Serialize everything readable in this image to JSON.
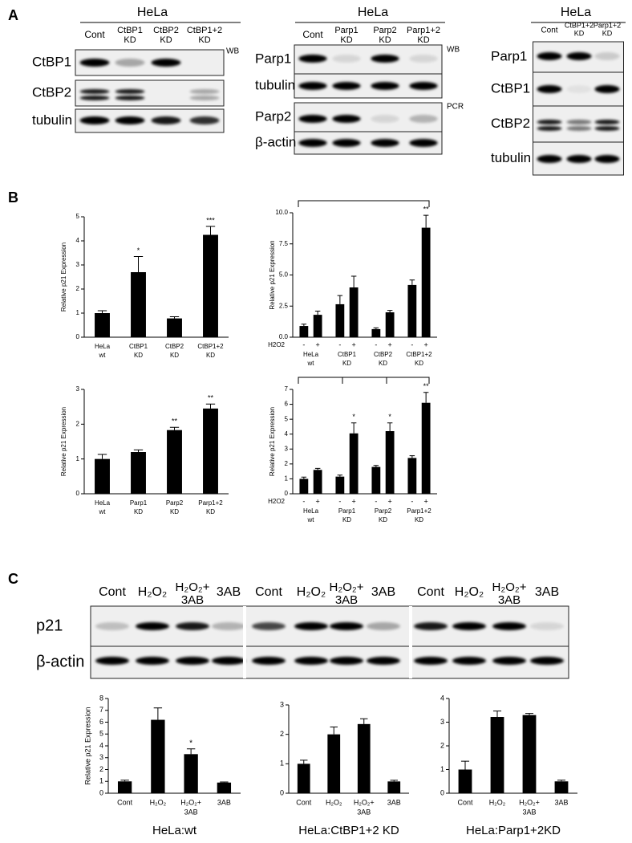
{
  "panel_labels": [
    "A",
    "B",
    "C"
  ],
  "blots": [
    {
      "title": "HeLa",
      "lanes": [
        [
          "Cont"
        ],
        [
          "CtBP1",
          "KD"
        ],
        [
          "CtBP2",
          "KD"
        ],
        [
          "CtBP1+2",
          "KD"
        ]
      ],
      "rows": [
        "CtBP1",
        "CtBP2",
        "tubulin"
      ],
      "tags": [
        "WB"
      ]
    },
    {
      "title": "HeLa",
      "lanes": [
        [
          "Cont"
        ],
        [
          "Parp1",
          "KD"
        ],
        [
          "Parp2",
          "KD"
        ],
        [
          "Parp1+2",
          "KD"
        ]
      ],
      "rows": [
        "Parp1",
        "tubulin",
        "Parp2",
        "β-actin"
      ],
      "tags": [
        "WB",
        "PCR"
      ]
    },
    {
      "title": "HeLa",
      "lanes": [
        [
          "Cont"
        ],
        [
          "CtBP1+2",
          "KD"
        ],
        [
          "Parp1+2",
          "KD"
        ]
      ],
      "rows": [
        "Parp1",
        "CtBP1",
        "CtBP2",
        "tubulin"
      ]
    },
    {
      "lanes": [
        [
          "Cont"
        ],
        [
          "H₂O₂"
        ],
        [
          "H₂O₂+",
          "3AB"
        ],
        [
          "3AB"
        ],
        [
          "Cont"
        ],
        [
          "H₂O₂"
        ],
        [
          "H₂O₂+",
          "3AB"
        ],
        [
          "3AB"
        ],
        [
          "Cont"
        ],
        [
          "H₂O₂"
        ],
        [
          "H₂O₂+",
          "3AB"
        ],
        [
          "3AB"
        ]
      ],
      "rows": [
        "p21",
        "β-actin"
      ]
    }
  ],
  "chart_data": [
    {
      "type": "bar",
      "ylabel": "Relative p21 Expression",
      "categories": [
        [
          "HeLa",
          "wt"
        ],
        [
          "CtBP1",
          "KD"
        ],
        [
          "CtBP2",
          "KD"
        ],
        [
          "CtBP1+2",
          "KD"
        ]
      ],
      "values": [
        1.0,
        2.7,
        0.78,
        4.25
      ],
      "errors": [
        0.1,
        0.65,
        0.07,
        0.35
      ],
      "significance": [
        null,
        "*",
        null,
        "***"
      ],
      "color": "#000000",
      "ylim": [
        0,
        5
      ],
      "yticks": [
        0,
        1,
        2,
        3,
        4,
        5
      ]
    },
    {
      "type": "bar",
      "ylabel": "Relative p21 Expression",
      "series_label": "H2O2",
      "categories": [
        [
          "HeLa",
          "wt"
        ],
        [
          "CtBP1",
          "KD"
        ],
        [
          "CtBP2",
          "KD"
        ],
        [
          "CtBP1+2",
          "KD"
        ]
      ],
      "series": [
        {
          "name": "-",
          "color": "#000000",
          "values": [
            0.9,
            2.65,
            0.65,
            4.2
          ],
          "errors": [
            0.15,
            0.7,
            0.1,
            0.4
          ]
        },
        {
          "name": "+",
          "color": "#000000",
          "values": [
            1.8,
            4.0,
            2.0,
            8.8
          ],
          "errors": [
            0.3,
            0.9,
            0.15,
            1.0
          ],
          "significance": [
            null,
            null,
            null,
            "**"
          ]
        }
      ],
      "ylim": [
        0,
        10
      ],
      "yticks": [
        {
          "value": 0,
          "label": "0.0"
        },
        2.5,
        {
          "value": 5,
          "label": "5.0"
        },
        7.5,
        {
          "value": 10,
          "label": "10.0"
        }
      ]
    },
    {
      "type": "bar",
      "ylabel": "Relative p21 Expression",
      "categories": [
        [
          "HeLa",
          "wt"
        ],
        [
          "Parp1",
          "KD"
        ],
        [
          "Parp2",
          "KD"
        ],
        [
          "Parp1+2",
          "KD"
        ]
      ],
      "values": [
        1.0,
        1.2,
        1.83,
        2.45
      ],
      "errors": [
        0.13,
        0.06,
        0.08,
        0.13
      ],
      "significance": [
        null,
        null,
        "**",
        "**"
      ],
      "color": "#000000",
      "ylim": [
        0,
        3
      ],
      "yticks": [
        0,
        1,
        2,
        3
      ]
    },
    {
      "type": "bar",
      "ylabel": "Relative p21 Expression",
      "series_label": "H2O2",
      "categories": [
        [
          "HeLa",
          "wt"
        ],
        [
          "Parp1",
          "KD"
        ],
        [
          "Parp2",
          "KD"
        ],
        [
          "Parp1+2",
          "KD"
        ]
      ],
      "series": [
        {
          "name": "-",
          "color": "#000000",
          "values": [
            1.0,
            1.15,
            1.8,
            2.4
          ],
          "errors": [
            0.12,
            0.1,
            0.1,
            0.15
          ]
        },
        {
          "name": "+",
          "color": "#000000",
          "values": [
            1.6,
            4.05,
            4.2,
            6.1
          ],
          "errors": [
            0.1,
            0.7,
            0.55,
            0.7
          ],
          "significance": [
            null,
            "*",
            "*",
            "**"
          ]
        }
      ],
      "ylim": [
        0,
        7
      ],
      "yticks": [
        0,
        1,
        2,
        3,
        4,
        5,
        6,
        7
      ]
    },
    {
      "type": "bar",
      "ylabel": "Relative p21 Expression",
      "xlabel": "HeLa:wt",
      "categories": [
        [
          "Cont"
        ],
        [
          "H₂O₂"
        ],
        [
          "H₂O₂+",
          "3AB"
        ],
        [
          "3AB"
        ]
      ],
      "values": [
        1.0,
        6.2,
        3.3,
        0.9
      ],
      "errors": [
        0.1,
        1.0,
        0.45,
        0.05
      ],
      "significance": [
        null,
        null,
        "*",
        null
      ],
      "color": "#000000",
      "ylim": [
        0,
        8
      ],
      "yticks": [
        0,
        1,
        2,
        3,
        4,
        5,
        6,
        7,
        8
      ]
    },
    {
      "type": "bar",
      "xlabel": "HeLa:CtBP1+2 KD",
      "categories": [
        [
          "Cont"
        ],
        [
          "H₂O₂"
        ],
        [
          "H₂O₂+",
          "3AB"
        ],
        [
          "3AB"
        ]
      ],
      "values": [
        1.0,
        2.0,
        2.35,
        0.4
      ],
      "errors": [
        0.12,
        0.25,
        0.18,
        0.04
      ],
      "color": "#000000",
      "ylim": [
        0,
        3
      ],
      "yticks": [
        0,
        1,
        2,
        3
      ]
    },
    {
      "type": "bar",
      "xlabel": "HeLa:Parp1+2KD",
      "categories": [
        [
          "Cont"
        ],
        [
          "H₂O₂"
        ],
        [
          "H₂O₂+",
          "3AB"
        ],
        [
          "3AB"
        ]
      ],
      "values": [
        1.0,
        3.22,
        3.3,
        0.5
      ],
      "errors": [
        0.35,
        0.25,
        0.07,
        0.05
      ],
      "color": "#000000",
      "ylim": [
        0,
        4
      ],
      "yticks": [
        0,
        1,
        2,
        3,
        4
      ]
    }
  ]
}
